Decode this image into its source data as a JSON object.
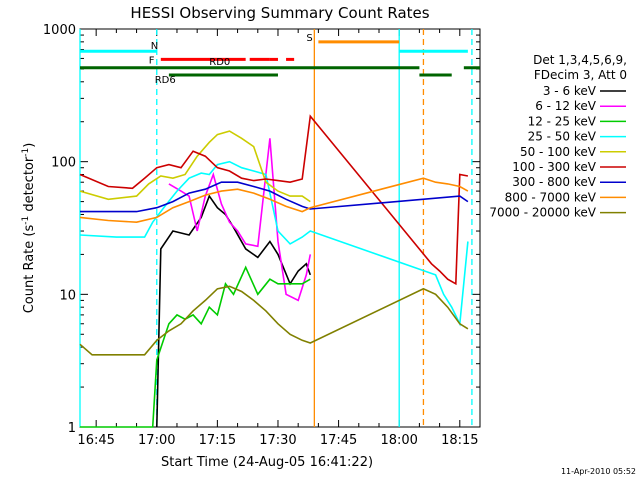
{
  "chart_data": {
    "type": "line",
    "title": "HESSI Observing Summary Count Rates",
    "xlabel": "Start Time (24-Aug-05 16:41:22)",
    "ylabel_main": "Count Rate (s",
    "ylabel_sup1": "-1",
    "ylabel_mid": " detector",
    "ylabel_sup2": "-1",
    "ylabel_end": ")",
    "y_scale": "log",
    "ylim": [
      1,
      1000
    ],
    "xlim_minutes": [
      "16:41",
      "18:20"
    ],
    "x_ticks": [
      "16:45",
      "17:00",
      "17:15",
      "17:30",
      "17:45",
      "18:00",
      "18:15"
    ],
    "y_ticks": [
      "1",
      "10",
      "100",
      "1000"
    ],
    "legend_header": [
      "Det 1,3,4,5,6,9,",
      "FDecim 3, Att 0"
    ],
    "footer_timestamp": "11-Apr-2010 05:52",
    "flags": {
      "N": {
        "label": "N",
        "color": "#00ffff",
        "level": 680,
        "segments": [
          [
            "16:41",
            "17:00"
          ],
          [
            "18:00",
            "18:17"
          ]
        ]
      },
      "S": {
        "label": "S",
        "color": "#ff8c00",
        "level": 800,
        "segments": [
          [
            "17:40",
            "18:00"
          ]
        ]
      },
      "F": {
        "label": "F",
        "color": "#ff0000",
        "level": 590,
        "segments": [
          [
            "17:01",
            "17:22"
          ],
          [
            "17:23",
            "17:28"
          ],
          [
            "17:28",
            "17:30"
          ],
          [
            "17:32",
            "17:34"
          ]
        ]
      },
      "RD0": {
        "label": "RD0",
        "color": "#006400",
        "level": 510,
        "segments": [
          [
            "16:41",
            "18:05"
          ],
          [
            "18:16",
            "18:20"
          ]
        ]
      },
      "RD6": {
        "label": "RD6",
        "color": "#006400",
        "level": 450,
        "segments": [
          [
            "17:03",
            "17:30"
          ],
          [
            "18:05",
            "18:13"
          ]
        ]
      }
    },
    "vlines": [
      {
        "time": "16:41",
        "color": "#00ffff",
        "style": "solid"
      },
      {
        "time": "17:00",
        "color": "#00ffff",
        "style": "dashed"
      },
      {
        "time": "17:39",
        "color": "#ff8c00",
        "style": "solid"
      },
      {
        "time": "18:00",
        "color": "#00ffff",
        "style": "solid"
      },
      {
        "time": "18:06",
        "color": "#ff8c00",
        "style": "dashed"
      },
      {
        "time": "18:18",
        "color": "#00ffff",
        "style": "dashed"
      }
    ],
    "series": [
      {
        "name": "3 - 6 keV",
        "color": "#000000",
        "points": [
          [
            "17:00",
            1
          ],
          [
            "17:01",
            22
          ],
          [
            "17:04",
            30
          ],
          [
            "17:08",
            28
          ],
          [
            "17:11",
            38
          ],
          [
            "17:13",
            55
          ],
          [
            "17:15",
            45
          ],
          [
            "17:17",
            40
          ],
          [
            "17:19",
            32
          ],
          [
            "17:22",
            22
          ],
          [
            "17:25",
            19
          ],
          [
            "17:28",
            25
          ],
          [
            "17:30",
            20
          ],
          [
            "17:33",
            12
          ],
          [
            "17:35",
            15
          ],
          [
            "17:37",
            17
          ],
          [
            "17:38",
            14
          ]
        ]
      },
      {
        "name": "6 - 12 keV",
        "color": "#ff00ff",
        "points": [
          [
            "17:03",
            68
          ],
          [
            "17:06",
            60
          ],
          [
            "17:08",
            55
          ],
          [
            "17:10",
            30
          ],
          [
            "17:12",
            55
          ],
          [
            "17:14",
            80
          ],
          [
            "17:16",
            48
          ],
          [
            "17:18",
            35
          ],
          [
            "17:20",
            30
          ],
          [
            "17:22",
            24
          ],
          [
            "17:25",
            23
          ],
          [
            "17:28",
            150
          ],
          [
            "17:30",
            25
          ],
          [
            "17:32",
            10
          ],
          [
            "17:35",
            9
          ],
          [
            "17:37",
            14
          ],
          [
            "17:38",
            20
          ]
        ]
      },
      {
        "name": "12 - 25 keV",
        "color": "#00cc00",
        "points": [
          [
            "16:41",
            1
          ],
          [
            "16:59",
            1
          ],
          [
            "17:00",
            3.2
          ],
          [
            "17:03",
            6
          ],
          [
            "17:05",
            7
          ],
          [
            "17:07",
            6.5
          ],
          [
            "17:09",
            7
          ],
          [
            "17:11",
            6
          ],
          [
            "17:13",
            8
          ],
          [
            "17:15",
            7
          ],
          [
            "17:17",
            12
          ],
          [
            "17:19",
            10
          ],
          [
            "17:22",
            16
          ],
          [
            "17:25",
            10
          ],
          [
            "17:28",
            13
          ],
          [
            "17:30",
            12
          ],
          [
            "17:33",
            12
          ],
          [
            "17:36",
            12
          ],
          [
            "17:38",
            13
          ]
        ]
      },
      {
        "name": "25 - 50 keV",
        "color": "#00ffff",
        "points": [
          [
            "16:41",
            28
          ],
          [
            "16:50",
            27
          ],
          [
            "16:57",
            27
          ],
          [
            "16:59",
            35
          ],
          [
            "17:02",
            46
          ],
          [
            "17:05",
            60
          ],
          [
            "17:08",
            75
          ],
          [
            "17:11",
            82
          ],
          [
            "17:13",
            80
          ],
          [
            "17:15",
            95
          ],
          [
            "17:18",
            100
          ],
          [
            "17:21",
            90
          ],
          [
            "17:24",
            85
          ],
          [
            "17:27",
            80
          ],
          [
            "17:30",
            30
          ],
          [
            "17:33",
            24
          ],
          [
            "17:36",
            27
          ],
          [
            "17:38",
            30
          ],
          [
            "18:09",
            14
          ],
          [
            "18:11",
            10
          ],
          [
            "18:13",
            8
          ],
          [
            "18:15",
            6
          ],
          [
            "18:17",
            25
          ]
        ]
      },
      {
        "name": "50 - 100 keV",
        "color": "#cccc00",
        "points": [
          [
            "16:41",
            60
          ],
          [
            "16:48",
            52
          ],
          [
            "16:55",
            55
          ],
          [
            "16:58",
            68
          ],
          [
            "17:01",
            78
          ],
          [
            "17:04",
            75
          ],
          [
            "17:07",
            80
          ],
          [
            "17:10",
            110
          ],
          [
            "17:13",
            140
          ],
          [
            "17:15",
            160
          ],
          [
            "17:18",
            170
          ],
          [
            "17:21",
            150
          ],
          [
            "17:24",
            130
          ],
          [
            "17:27",
            70
          ],
          [
            "17:30",
            60
          ],
          [
            "17:33",
            55
          ],
          [
            "17:36",
            55
          ],
          [
            "17:38",
            50
          ]
        ]
      },
      {
        "name": "100 - 300 keV",
        "color": "#cc0000",
        "points": [
          [
            "16:41",
            80
          ],
          [
            "16:48",
            65
          ],
          [
            "16:54",
            63
          ],
          [
            "16:57",
            75
          ],
          [
            "17:00",
            90
          ],
          [
            "17:03",
            95
          ],
          [
            "17:06",
            90
          ],
          [
            "17:09",
            120
          ],
          [
            "17:12",
            110
          ],
          [
            "17:15",
            90
          ],
          [
            "17:18",
            85
          ],
          [
            "17:21",
            75
          ],
          [
            "17:24",
            72
          ],
          [
            "17:27",
            74
          ],
          [
            "17:30",
            72
          ],
          [
            "17:33",
            70
          ],
          [
            "17:36",
            74
          ],
          [
            "17:38",
            220
          ],
          [
            "18:08",
            17
          ],
          [
            "18:10",
            15
          ],
          [
            "18:12",
            13
          ],
          [
            "18:14",
            12
          ],
          [
            "18:15",
            80
          ],
          [
            "18:17",
            78
          ]
        ]
      },
      {
        "name": "300 - 800 keV",
        "color": "#0000cc",
        "points": [
          [
            "16:41",
            42
          ],
          [
            "16:48",
            42
          ],
          [
            "16:55",
            42
          ],
          [
            "17:00",
            45
          ],
          [
            "17:04",
            50
          ],
          [
            "17:08",
            58
          ],
          [
            "17:12",
            62
          ],
          [
            "17:16",
            70
          ],
          [
            "17:20",
            70
          ],
          [
            "17:24",
            65
          ],
          [
            "17:28",
            60
          ],
          [
            "17:32",
            52
          ],
          [
            "17:36",
            46
          ],
          [
            "17:38",
            44
          ],
          [
            "18:15",
            55
          ],
          [
            "18:17",
            50
          ]
        ]
      },
      {
        "name": "800 - 7000 keV",
        "color": "#ff8c00",
        "points": [
          [
            "16:41",
            38
          ],
          [
            "16:48",
            36
          ],
          [
            "16:55",
            35
          ],
          [
            "17:00",
            38
          ],
          [
            "17:04",
            45
          ],
          [
            "17:08",
            50
          ],
          [
            "17:12",
            56
          ],
          [
            "17:16",
            60
          ],
          [
            "17:20",
            62
          ],
          [
            "17:24",
            58
          ],
          [
            "17:28",
            52
          ],
          [
            "17:32",
            46
          ],
          [
            "17:36",
            42
          ],
          [
            "17:38",
            45
          ],
          [
            "18:06",
            75
          ],
          [
            "18:09",
            70
          ],
          [
            "18:12",
            68
          ],
          [
            "18:15",
            65
          ],
          [
            "18:17",
            60
          ]
        ]
      },
      {
        "name": "7000 - 20000 keV",
        "color": "#808000",
        "points": [
          [
            "16:41",
            4.2
          ],
          [
            "16:44",
            3.5
          ],
          [
            "16:47",
            3.5
          ],
          [
            "16:52",
            3.5
          ],
          [
            "16:57",
            3.5
          ],
          [
            "17:00",
            4.5
          ],
          [
            "17:03",
            5.3
          ],
          [
            "17:06",
            6
          ],
          [
            "17:09",
            7.5
          ],
          [
            "17:12",
            9
          ],
          [
            "17:15",
            11
          ],
          [
            "17:18",
            11.5
          ],
          [
            "17:21",
            10.5
          ],
          [
            "17:24",
            9
          ],
          [
            "17:27",
            7.5
          ],
          [
            "17:30",
            6
          ],
          [
            "17:33",
            5
          ],
          [
            "17:36",
            4.5
          ],
          [
            "17:38",
            4.3
          ],
          [
            "18:06",
            11
          ],
          [
            "18:09",
            10
          ],
          [
            "18:12",
            8
          ],
          [
            "18:15",
            6
          ],
          [
            "18:17",
            5.5
          ]
        ]
      }
    ]
  }
}
